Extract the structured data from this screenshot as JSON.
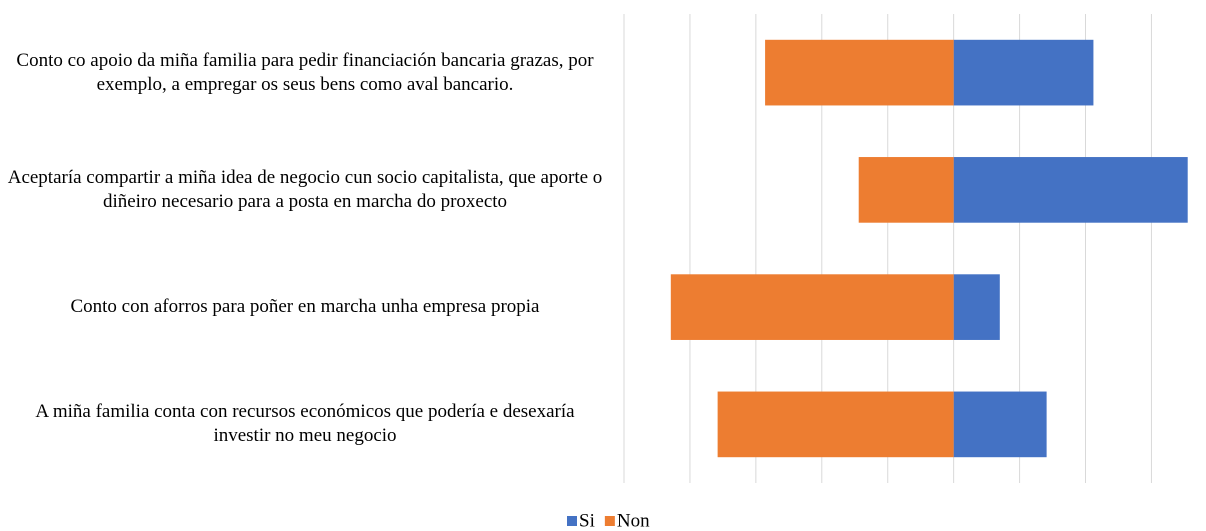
{
  "chart_data": {
    "type": "diverging-bar",
    "categories": [
      "Conto co apoio da miña familia para pedir financiación bancaria grazas, por exemplo, a empregar os seus bens como aval bancario.",
      "Aceptaría compartir a miña idea de negocio cun socio capitalista, que aporte o diñeiro necesario para a posta en marcha do proxecto",
      "Conto con aforros para poñer en marcha unha empresa propia",
      "A miña familia conta con recursos económicos que podería e desexaría investir no meu negocio"
    ],
    "series": [
      {
        "name": "Si",
        "color": "#4472c4",
        "values": [
          21.2,
          35.5,
          7.0,
          14.1
        ]
      },
      {
        "name": "Non",
        "color": "#ed7d31",
        "values": [
          -28.6,
          -14.4,
          -42.9,
          -35.8
        ]
      }
    ],
    "xlim": [
      -50,
      36
    ],
    "xticks": [
      -50,
      -40,
      -30,
      -20,
      -10,
      0,
      10,
      20,
      30
    ],
    "grid": true,
    "legend": "bottom"
  }
}
